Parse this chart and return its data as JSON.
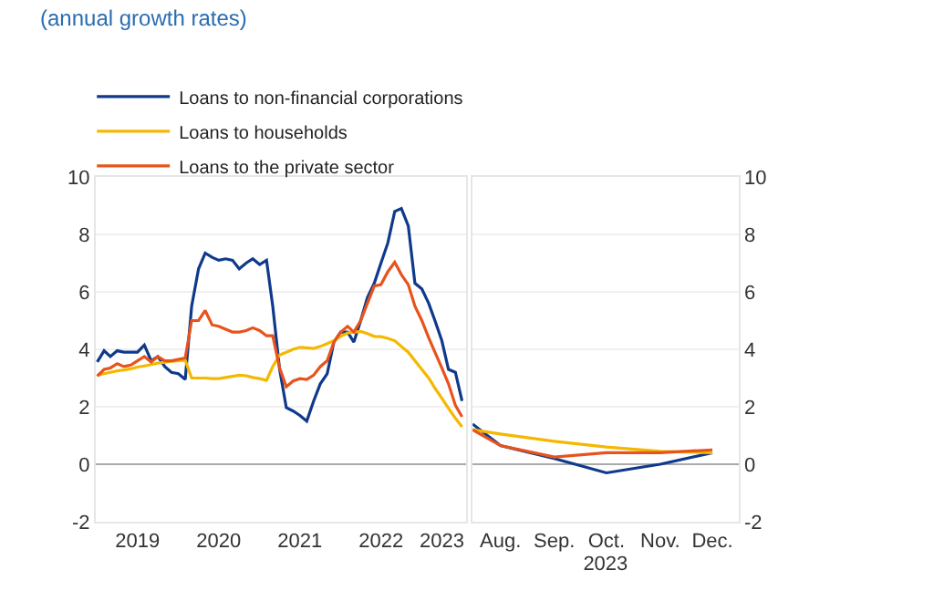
{
  "chart_data": [
    {
      "type": "line",
      "title": "(annual growth rates)",
      "legend": "top left",
      "grid": "y",
      "x": [
        "2019-01",
        "2019-02",
        "2019-03",
        "2019-04",
        "2019-05",
        "2019-06",
        "2019-07",
        "2019-08",
        "2019-09",
        "2019-10",
        "2019-11",
        "2019-12",
        "2020-01",
        "2020-02",
        "2020-03",
        "2020-04",
        "2020-05",
        "2020-06",
        "2020-07",
        "2020-08",
        "2020-09",
        "2020-10",
        "2020-11",
        "2020-12",
        "2021-01",
        "2021-02",
        "2021-03",
        "2021-04",
        "2021-05",
        "2021-06",
        "2021-07",
        "2021-08",
        "2021-09",
        "2021-10",
        "2021-11",
        "2021-12",
        "2022-01",
        "2022-02",
        "2022-03",
        "2022-04",
        "2022-05",
        "2022-06",
        "2022-07",
        "2022-08",
        "2022-09",
        "2022-10",
        "2022-11",
        "2022-12",
        "2023-01",
        "2023-02",
        "2023-03",
        "2023-04",
        "2023-05",
        "2023-06",
        "2023-07"
      ],
      "xlim": [
        "2018-12-25",
        "2023-07-20"
      ],
      "xticks": [
        {
          "value": "2019-07-01",
          "label": "2019"
        },
        {
          "value": "2020-07-01",
          "label": "2020"
        },
        {
          "value": "2021-07-01",
          "label": "2021"
        },
        {
          "value": "2022-07-01",
          "label": "2022"
        },
        {
          "value": "2023-04-01",
          "label": "2023"
        }
      ],
      "ylim": [
        -2,
        10
      ],
      "yticks": [
        -2,
        0,
        2,
        4,
        6,
        8,
        10
      ],
      "series": [
        {
          "name": "Loans to non-financial corporations",
          "color": "#0f3a8c",
          "values": [
            3.56,
            3.95,
            3.75,
            3.95,
            3.9,
            3.9,
            3.9,
            4.15,
            3.6,
            3.75,
            3.4,
            3.2,
            3.15,
            2.95,
            5.5,
            6.8,
            7.35,
            7.2,
            7.1,
            7.15,
            7.1,
            6.8,
            7.0,
            7.15,
            6.95,
            7.1,
            5.5,
            3.3,
            1.97,
            1.85,
            1.7,
            1.5,
            2.2,
            2.8,
            3.15,
            4.25,
            4.6,
            4.6,
            4.25,
            5.0,
            5.8,
            6.3,
            7.0,
            7.7,
            8.8,
            8.9,
            8.3,
            6.3,
            6.1,
            5.6,
            5.0,
            4.3,
            3.3,
            3.2,
            2.2
          ]
        },
        {
          "name": "Loans to households",
          "color": "#f5b800",
          "values": [
            3.1,
            3.15,
            3.2,
            3.25,
            3.28,
            3.32,
            3.38,
            3.42,
            3.47,
            3.52,
            3.55,
            3.58,
            3.6,
            3.62,
            3.0,
            3.0,
            3.0,
            2.98,
            2.98,
            3.02,
            3.06,
            3.1,
            3.08,
            3.02,
            2.98,
            2.92,
            3.4,
            3.8,
            3.9,
            4.0,
            4.07,
            4.05,
            4.03,
            4.1,
            4.2,
            4.3,
            4.45,
            4.57,
            4.6,
            4.62,
            4.55,
            4.45,
            4.44,
            4.38,
            4.3,
            4.1,
            3.9,
            3.6,
            3.3,
            3.0,
            2.65,
            2.3,
            1.95,
            1.6,
            1.3
          ]
        },
        {
          "name": "Loans to the private sector",
          "color": "#e8531c",
          "values": [
            3.07,
            3.3,
            3.35,
            3.5,
            3.4,
            3.45,
            3.6,
            3.75,
            3.56,
            3.75,
            3.6,
            3.6,
            3.65,
            3.7,
            5.0,
            5.0,
            5.35,
            4.85,
            4.8,
            4.7,
            4.6,
            4.6,
            4.65,
            4.75,
            4.65,
            4.47,
            4.47,
            3.35,
            2.7,
            2.9,
            2.98,
            2.95,
            3.1,
            3.4,
            3.6,
            4.25,
            4.6,
            4.8,
            4.6,
            5.0,
            5.6,
            6.2,
            6.25,
            6.7,
            7.03,
            6.6,
            6.25,
            5.5,
            5.0,
            4.4,
            3.9,
            3.35,
            2.8,
            2.05,
            1.65
          ]
        }
      ]
    },
    {
      "type": "line",
      "grid": "y",
      "xlabel": "2023",
      "x": [
        "2023-07-16",
        "2023-08-01",
        "2023-09-01",
        "2023-10-01",
        "2023-11-01",
        "2023-12-01"
      ],
      "xlim": [
        "2023-07-16",
        "2023-12-16"
      ],
      "xticks": [
        {
          "value": "2023-08-01",
          "label": "Aug."
        },
        {
          "value": "2023-09-01",
          "label": "Sep."
        },
        {
          "value": "2023-10-01",
          "label": "Oct."
        },
        {
          "value": "2023-11-01",
          "label": "Nov."
        },
        {
          "value": "2023-12-01",
          "label": "Dec."
        }
      ],
      "y2lim": [
        -2,
        10
      ],
      "y2ticks": [
        -2,
        0,
        2,
        4,
        6,
        8,
        10
      ],
      "series": [
        {
          "color": "#0f3a8c",
          "axis": "y2",
          "values": [
            1.4,
            0.65,
            0.2,
            -0.3,
            0.0,
            0.4
          ]
        },
        {
          "color": "#f5b800",
          "axis": "y2",
          "values": [
            1.2,
            1.05,
            0.8,
            0.6,
            0.45,
            0.4
          ]
        },
        {
          "color": "#e8531c",
          "axis": "y2",
          "values": [
            1.2,
            0.65,
            0.25,
            0.4,
            0.4,
            0.5
          ]
        }
      ]
    }
  ]
}
